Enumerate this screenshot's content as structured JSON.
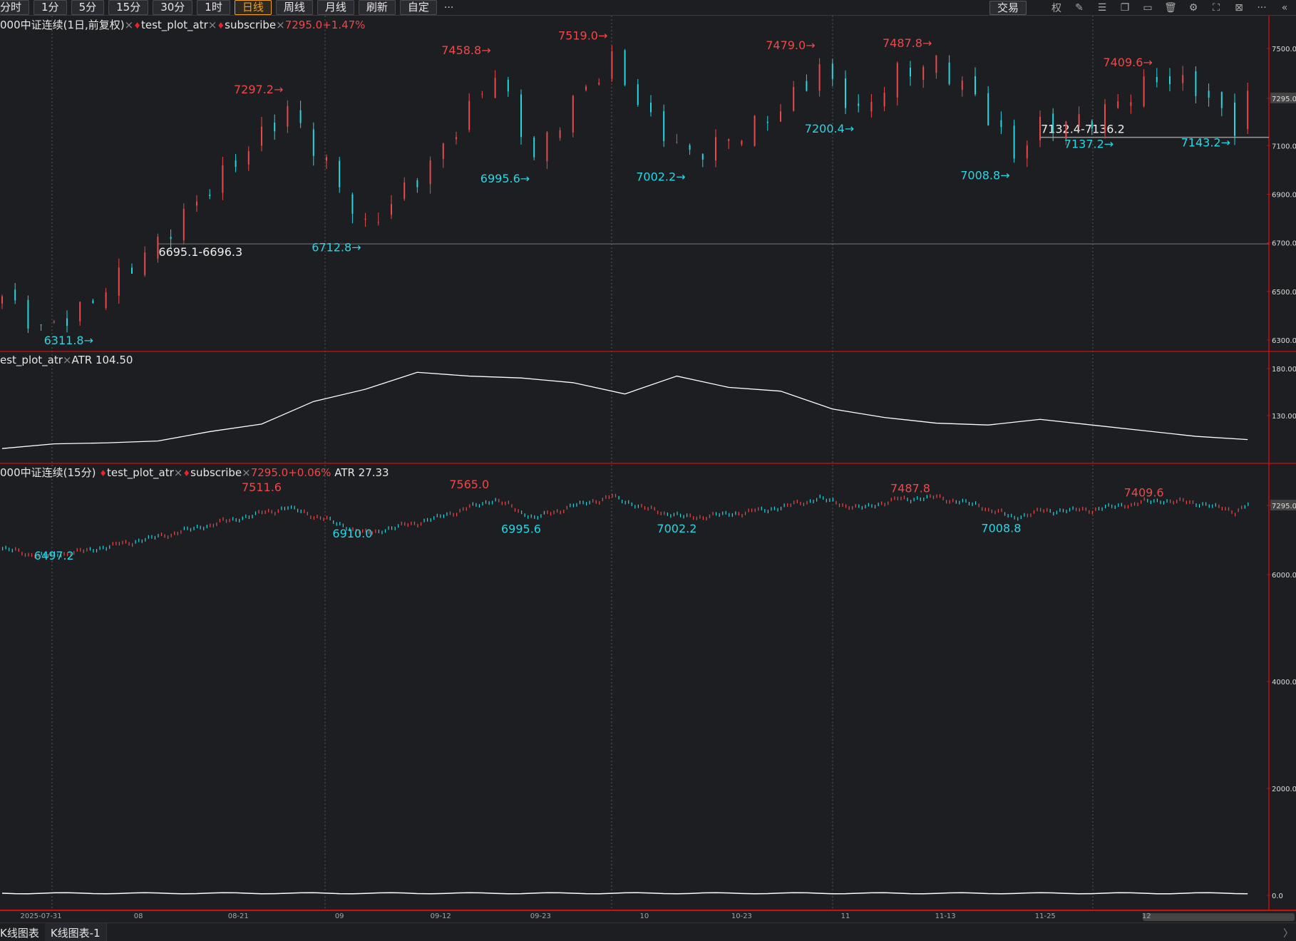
{
  "toolbar": {
    "buttons": [
      "分时",
      "1分",
      "5分",
      "15分",
      "30分",
      "1时",
      "日线",
      "周线",
      "月线",
      "刷新",
      "自定"
    ],
    "active": "日线",
    "more": "···",
    "trade": "交易",
    "quan": "权",
    "collapse": "«"
  },
  "legend1": {
    "name": "000中证连续(1日,前复权)",
    "x": "×",
    "ind1": "test_plot_atr",
    "ind2": "subscribe",
    "quote": "7295.0+1.47%"
  },
  "legend2": {
    "name": "est_plot_atr",
    "x": "×",
    "value": "ATR 104.50"
  },
  "legend3": {
    "name": "000中证连续(15分)",
    "ind1": "test_plot_atr",
    "ind2": "subscribe",
    "quote": "7295.0+0.06%",
    "atr": "ATR 27.33"
  },
  "colors": {
    "up": "#e84a4a",
    "down": "#27d5e0",
    "bg": "#1d1e22",
    "border": "#c01010"
  },
  "chart_data": [
    {
      "type": "candlestick",
      "title": "000中证连续(1日,前复权)",
      "yticks": [
        "7500.0",
        "7295.0",
        "7100.0",
        "6900.0",
        "6700.0",
        "6500.0",
        "6300.0"
      ],
      "ylim": [
        6260,
        7560
      ],
      "last": "7295.0",
      "close_pivots": [
        [
          0,
          6480
        ],
        [
          3,
          6340
        ],
        [
          6,
          6420
        ],
        [
          12,
          6700
        ],
        [
          17,
          6980
        ],
        [
          22,
          7250
        ],
        [
          25,
          7020
        ],
        [
          28,
          6760
        ],
        [
          33,
          7020
        ],
        [
          38,
          7400
        ],
        [
          41,
          7050
        ],
        [
          44,
          7280
        ],
        [
          47,
          7450
        ],
        [
          50,
          7200
        ],
        [
          53,
          7060
        ],
        [
          57,
          7150
        ],
        [
          60,
          7250
        ],
        [
          63,
          7420
        ],
        [
          66,
          7230
        ],
        [
          69,
          7400
        ],
        [
          72,
          7440
        ],
        [
          75,
          7300
        ],
        [
          78,
          7060
        ],
        [
          80,
          7180
        ],
        [
          84,
          7210
        ],
        [
          89,
          7380
        ],
        [
          92,
          7340
        ],
        [
          95,
          7180
        ],
        [
          96,
          7295
        ]
      ],
      "labels": [
        {
          "text": "6311.8",
          "i": 3,
          "p": 6311.8,
          "kind": "low"
        },
        {
          "text": "7297.2",
          "i": 22,
          "p": 7297.2,
          "kind": "high"
        },
        {
          "text": "6712.8",
          "i": 28,
          "p": 6712.8,
          "kind": "low"
        },
        {
          "text": "7458.8",
          "i": 38,
          "p": 7458.8,
          "kind": "high"
        },
        {
          "text": "6995.6",
          "i": 41,
          "p": 6995.6,
          "kind": "low"
        },
        {
          "text": "7519.0",
          "i": 47,
          "p": 7519.0,
          "kind": "high"
        },
        {
          "text": "7002.2",
          "i": 53,
          "p": 7002.2,
          "kind": "low"
        },
        {
          "text": "7479.0",
          "i": 63,
          "p": 7479.0,
          "kind": "high"
        },
        {
          "text": "7200.4",
          "i": 66,
          "p": 7200.4,
          "kind": "low"
        },
        {
          "text": "7487.8",
          "i": 72,
          "p": 7487.8,
          "kind": "high"
        },
        {
          "text": "7008.8",
          "i": 78,
          "p": 7008.8,
          "kind": "low"
        },
        {
          "text": "7409.6",
          "i": 89,
          "p": 7409.6,
          "kind": "high"
        },
        {
          "text": "7137.2",
          "i": 86,
          "p": 7137.2,
          "kind": "low"
        },
        {
          "text": "7143.2",
          "i": 95,
          "p": 7143.2,
          "kind": "low"
        }
      ],
      "zones": [
        {
          "text": "6695.1-6696.3",
          "from": 12,
          "p": 6695.7
        },
        {
          "text": "7132.4-7136.2",
          "from": 80,
          "p": 7134.3
        }
      ]
    },
    {
      "type": "line",
      "title": "ATR",
      "yticks": [
        "180.000",
        "130.000"
      ],
      "ylim": [
        80,
        190
      ],
      "values_every4": [
        95,
        100,
        101,
        103,
        113,
        121,
        145,
        158,
        176,
        172,
        170,
        165,
        153,
        172,
        160,
        156,
        137,
        128,
        122,
        120,
        126,
        120,
        114,
        108,
        104.5
      ]
    },
    {
      "type": "candlestick",
      "title": "000中证连续(15分)",
      "yticks": [
        "7295.0",
        "6000.0",
        "4000.0",
        "2000.0",
        "0.0"
      ],
      "ylim": [
        0,
        7600
      ],
      "labels": [
        {
          "text": "7511.6",
          "i": 20,
          "p": 7511.6,
          "kind": "high"
        },
        {
          "text": "6497.2",
          "i": 4,
          "p": 6497.2,
          "kind": "low"
        },
        {
          "text": "6910.0",
          "i": 27,
          "p": 6910.0,
          "kind": "low"
        },
        {
          "text": "7565.0",
          "i": 36,
          "p": 7565.0,
          "kind": "high"
        },
        {
          "text": "6995.6",
          "i": 40,
          "p": 6995.6,
          "kind": "low"
        },
        {
          "text": "7002.2",
          "i": 52,
          "p": 7002.2,
          "kind": "low"
        },
        {
          "text": "7487.8",
          "i": 70,
          "p": 7487.8,
          "kind": "high"
        },
        {
          "text": "7008.8",
          "i": 77,
          "p": 7008.8,
          "kind": "low"
        },
        {
          "text": "7409.6",
          "i": 88,
          "p": 7409.6,
          "kind": "high"
        }
      ]
    }
  ],
  "dates": [
    [
      "2025-07-31",
      3
    ],
    [
      "08",
      10.5
    ],
    [
      "08-21",
      18.2
    ],
    [
      "09",
      26
    ],
    [
      "09-12",
      33.8
    ],
    [
      "09-23",
      41.5
    ],
    [
      "10",
      49.5
    ],
    [
      "10-23",
      57
    ],
    [
      "11",
      65
    ],
    [
      "11-13",
      72.7
    ],
    [
      "11-25",
      80.4
    ],
    [
      "12",
      88.2
    ]
  ],
  "tabs": [
    "K线图表",
    "K线图表-1"
  ]
}
